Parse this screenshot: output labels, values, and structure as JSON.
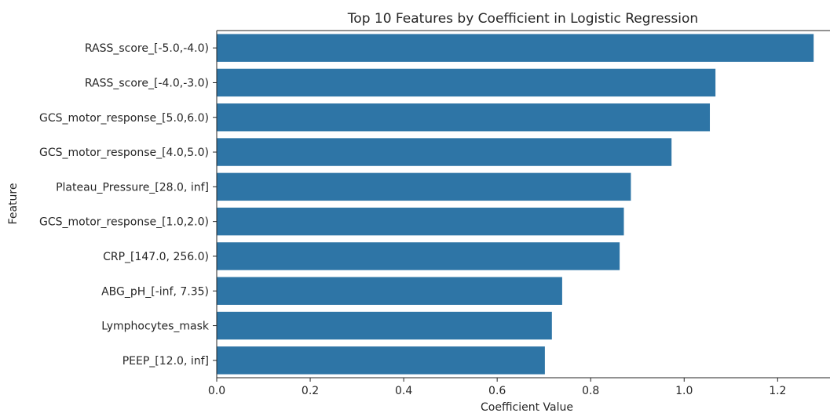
{
  "chart_data": {
    "type": "bar",
    "orientation": "horizontal",
    "title": "Top 10 Features by Coefficient in Logistic Regression",
    "xlabel": "Coefficient Value",
    "ylabel": "Feature",
    "categories": [
      "RASS_score_[-5.0,-4.0)",
      "RASS_score_[-4.0,-3.0)",
      "GCS_motor_response_[5.0,6.0)",
      "GCS_motor_response_[4.0,5.0)",
      "Plateau_Pressure_[28.0, inf]",
      "GCS_motor_response_[1.0,2.0)",
      "CRP_[147.0, 256.0)",
      "ABG_pH_[-inf, 7.35)",
      "Lymphocytes_mask",
      "PEEP_[12.0, inf]"
    ],
    "values": [
      1.277,
      1.067,
      1.055,
      0.973,
      0.886,
      0.871,
      0.862,
      0.739,
      0.717,
      0.702
    ],
    "xlim": [
      0,
      1.312
    ],
    "xticks": [
      0.0,
      0.2,
      0.4,
      0.6,
      0.8,
      1.0,
      1.2
    ],
    "xtick_labels": [
      "0.0",
      "0.2",
      "0.4",
      "0.6",
      "0.8",
      "1.0",
      "1.2"
    ],
    "bar_color": "#2e75a6",
    "grid": false
  }
}
